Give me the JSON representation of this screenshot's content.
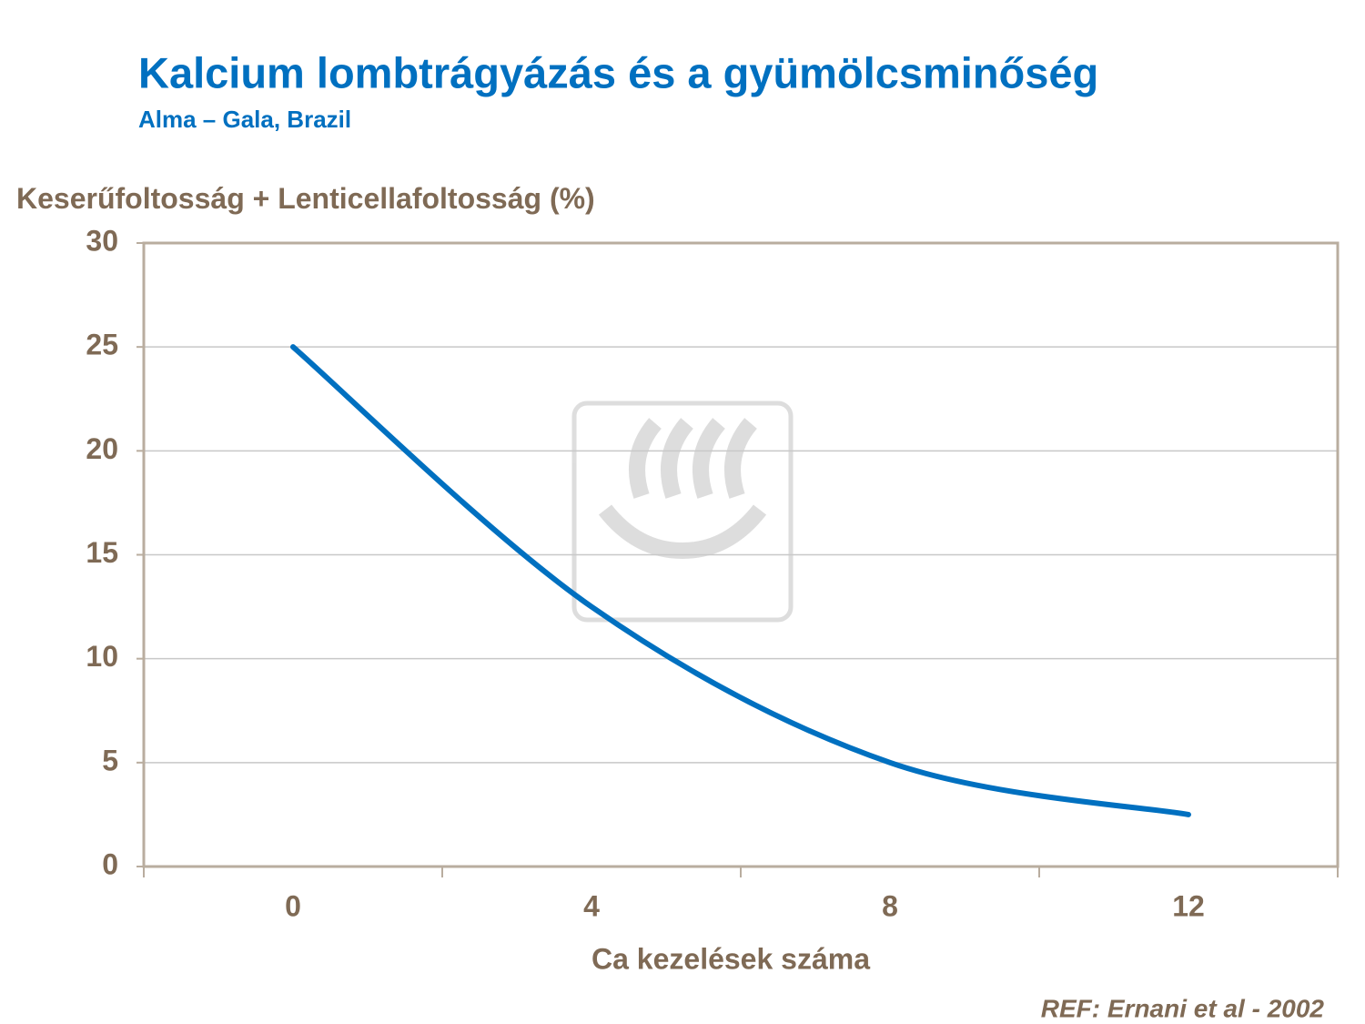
{
  "chart_data": {
    "type": "line",
    "title": "Kalcium lombtrágyázás és a gyümölcsminőség",
    "subtitle": "Alma – Gala, Brazil",
    "y_label": "Keserűfoltosság + Lenticellafoltosság (%)",
    "x_label": "Ca kezelések száma",
    "source": "REF: Ernani et al - 2002",
    "categories": [
      "0",
      "4",
      "8",
      "12"
    ],
    "values": [
      25,
      12.5,
      5,
      2.5
    ],
    "color": "#0070c0",
    "smooth": true,
    "ylim": [
      0,
      30
    ],
    "yticks": [
      0,
      5,
      10,
      15,
      20,
      25,
      30
    ],
    "grid": true
  }
}
